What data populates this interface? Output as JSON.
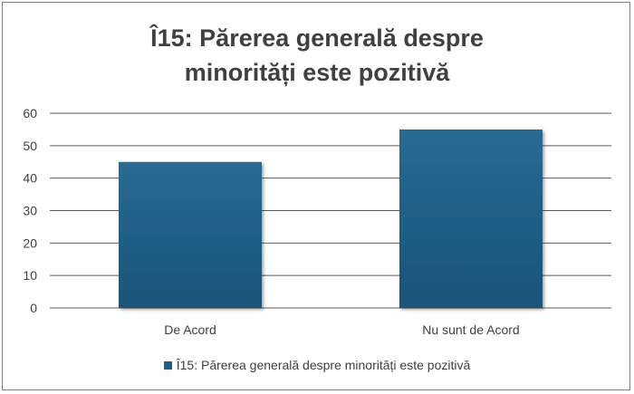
{
  "chart_data": {
    "type": "bar",
    "title": [
      "Î15: Părerea generală despre",
      "minorități este pozitivă"
    ],
    "categories": [
      "De Acord",
      "Nu sunt de Acord"
    ],
    "series": [
      {
        "name": "Î15: Părerea generală despre minorități este pozitivă",
        "values": [
          45,
          55
        ]
      }
    ],
    "ylim": [
      0,
      60
    ],
    "yticks": [
      "0",
      "10",
      "20",
      "30",
      "40",
      "50",
      "60"
    ],
    "grid": true,
    "legend_position": "bottom",
    "colors": {
      "bar": "#1f5f86",
      "bar_top": "#2b6f97",
      "grid": "#595959",
      "text": "#404040"
    }
  }
}
